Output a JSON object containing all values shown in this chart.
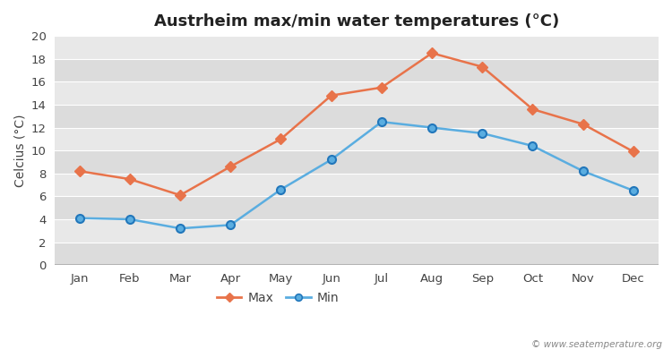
{
  "months": [
    "Jan",
    "Feb",
    "Mar",
    "Apr",
    "May",
    "Jun",
    "Jul",
    "Aug",
    "Sep",
    "Oct",
    "Nov",
    "Dec"
  ],
  "max_temps": [
    8.2,
    7.5,
    6.1,
    8.6,
    11.0,
    14.8,
    15.5,
    18.5,
    17.3,
    13.6,
    12.3,
    9.9
  ],
  "min_temps": [
    4.1,
    4.0,
    3.2,
    3.5,
    6.6,
    9.2,
    12.5,
    12.0,
    11.5,
    10.4,
    8.2,
    6.5
  ],
  "max_color": "#e8734a",
  "min_color": "#5aade0",
  "title": "Austrheim max/min water temperatures (°C)",
  "ylabel": "Celcius (°C)",
  "ylim": [
    0,
    20
  ],
  "yticks": [
    0,
    2,
    4,
    6,
    8,
    10,
    12,
    14,
    16,
    18,
    20
  ],
  "band_colors": [
    "#dcdcdc",
    "#e8e8e8"
  ],
  "fig_bg_color": "#ffffff",
  "watermark": "© www.seatemperature.org",
  "legend_max": "Max",
  "legend_min": "Min",
  "title_fontsize": 13,
  "label_fontsize": 10,
  "tick_fontsize": 9.5
}
